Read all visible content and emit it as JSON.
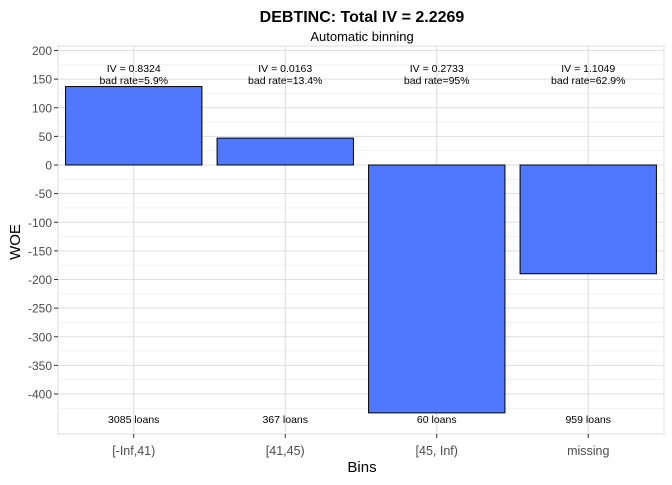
{
  "chart_data": {
    "type": "bar",
    "title": "DEBTINC: Total IV = 2.2269",
    "subtitle": "Automatic binning",
    "xlabel": "Bins",
    "ylabel": "WOE",
    "categories": [
      "[-Inf,41)",
      "[41,45)",
      "[45, Inf)",
      "missing"
    ],
    "values": [
      137,
      47,
      -433,
      -190
    ],
    "iv_labels": [
      "IV = 0.8324",
      "IV = 0.0163",
      "IV = 0.2733",
      "IV = 1.1049"
    ],
    "bad_rate_labels": [
      "bad rate=5.9%",
      "bad rate=13.4%",
      "bad rate=95%",
      "bad rate=62.9%"
    ],
    "count_labels": [
      "3085 loans",
      "367 loans",
      "60 loans",
      "959 loans"
    ],
    "ylim": [
      -450,
      200
    ],
    "yticks": [
      200,
      150,
      100,
      50,
      0,
      -50,
      -100,
      -150,
      -200,
      -250,
      -300,
      -350,
      -400
    ],
    "grid": true,
    "legend": "none",
    "colors": {
      "bar_fill": "#5078ff",
      "bar_stroke": "#000000",
      "grid": "#dedede",
      "axis_text": "#4d4d4d"
    }
  }
}
